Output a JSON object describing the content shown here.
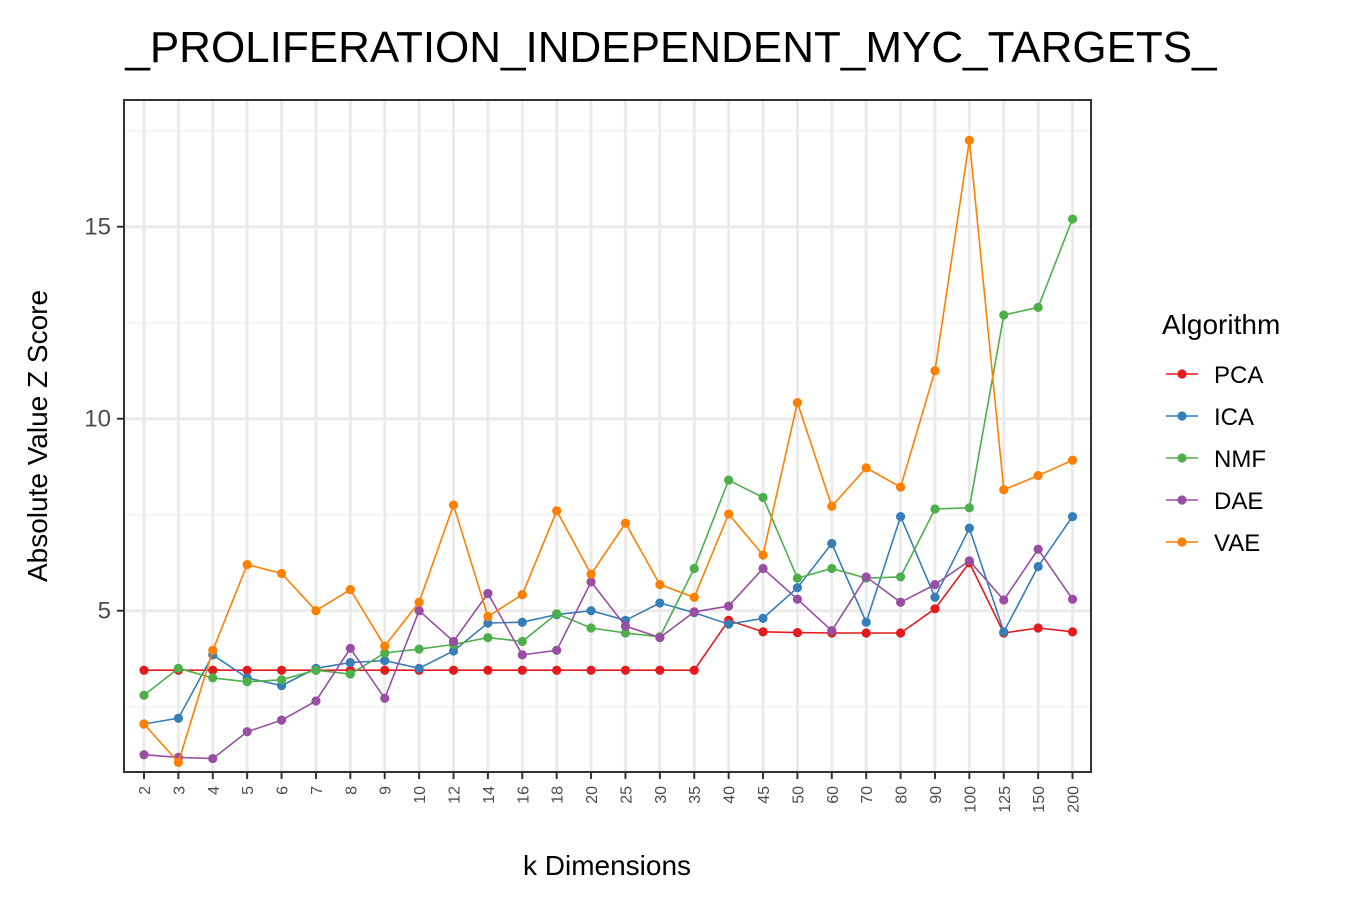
{
  "chart_data": {
    "type": "line",
    "title": "_PROLIFERATION_INDEPENDENT_MYC_TARGETS_",
    "xlabel": "k Dimensions",
    "ylabel": "Absolute Value Z Score",
    "ylim": [
      0.8,
      18.3
    ],
    "yticks": [
      5,
      10,
      15
    ],
    "grid": true,
    "legend_title": "Algorithm",
    "legend_position": "right",
    "categories": [
      "2",
      "3",
      "4",
      "5",
      "6",
      "7",
      "8",
      "9",
      "10",
      "12",
      "14",
      "16",
      "18",
      "20",
      "25",
      "30",
      "35",
      "40",
      "45",
      "50",
      "60",
      "70",
      "80",
      "90",
      "100",
      "125",
      "150",
      "200"
    ],
    "series": [
      {
        "name": "PCA",
        "color": "#e41a1c",
        "values": [
          3.45,
          3.45,
          3.45,
          3.45,
          3.45,
          3.45,
          3.45,
          3.45,
          3.45,
          3.45,
          3.45,
          3.45,
          3.45,
          3.45,
          3.45,
          3.45,
          3.45,
          4.75,
          4.45,
          4.43,
          4.42,
          4.42,
          4.42,
          5.05,
          6.25,
          4.42,
          4.55,
          4.45
        ]
      },
      {
        "name": "ICA",
        "color": "#377eb8",
        "values": [
          2.05,
          2.2,
          3.85,
          3.25,
          3.05,
          3.5,
          3.65,
          3.7,
          3.5,
          3.95,
          4.68,
          4.7,
          4.9,
          5.0,
          4.75,
          5.2,
          4.95,
          4.65,
          4.8,
          5.6,
          6.75,
          4.7,
          7.45,
          5.35,
          7.15,
          4.45,
          6.15,
          7.45
        ]
      },
      {
        "name": "NMF",
        "color": "#4daf4a",
        "values": [
          2.8,
          3.5,
          3.25,
          3.15,
          3.2,
          3.45,
          3.35,
          3.9,
          4.0,
          4.12,
          4.3,
          4.2,
          4.92,
          4.55,
          4.42,
          4.32,
          6.1,
          8.4,
          7.95,
          5.85,
          6.1,
          5.85,
          5.88,
          7.65,
          7.68,
          12.7,
          12.9,
          15.2
        ]
      },
      {
        "name": "DAE",
        "color": "#984ea3",
        "values": [
          1.25,
          1.18,
          1.15,
          1.85,
          2.15,
          2.65,
          4.02,
          2.72,
          5.0,
          4.2,
          5.45,
          3.85,
          3.97,
          5.75,
          4.6,
          4.3,
          4.97,
          5.12,
          6.1,
          5.3,
          4.48,
          5.88,
          5.22,
          5.68,
          6.3,
          5.28,
          6.6,
          5.3
        ]
      },
      {
        "name": "VAE",
        "color": "#ff7f00",
        "values": [
          2.05,
          1.05,
          3.97,
          6.2,
          5.97,
          5.0,
          5.55,
          4.08,
          5.22,
          7.75,
          4.85,
          5.42,
          7.6,
          5.95,
          7.28,
          5.68,
          5.35,
          7.52,
          6.45,
          10.42,
          7.72,
          8.72,
          8.22,
          11.25,
          17.25,
          8.15,
          8.52,
          8.92
        ]
      }
    ]
  }
}
